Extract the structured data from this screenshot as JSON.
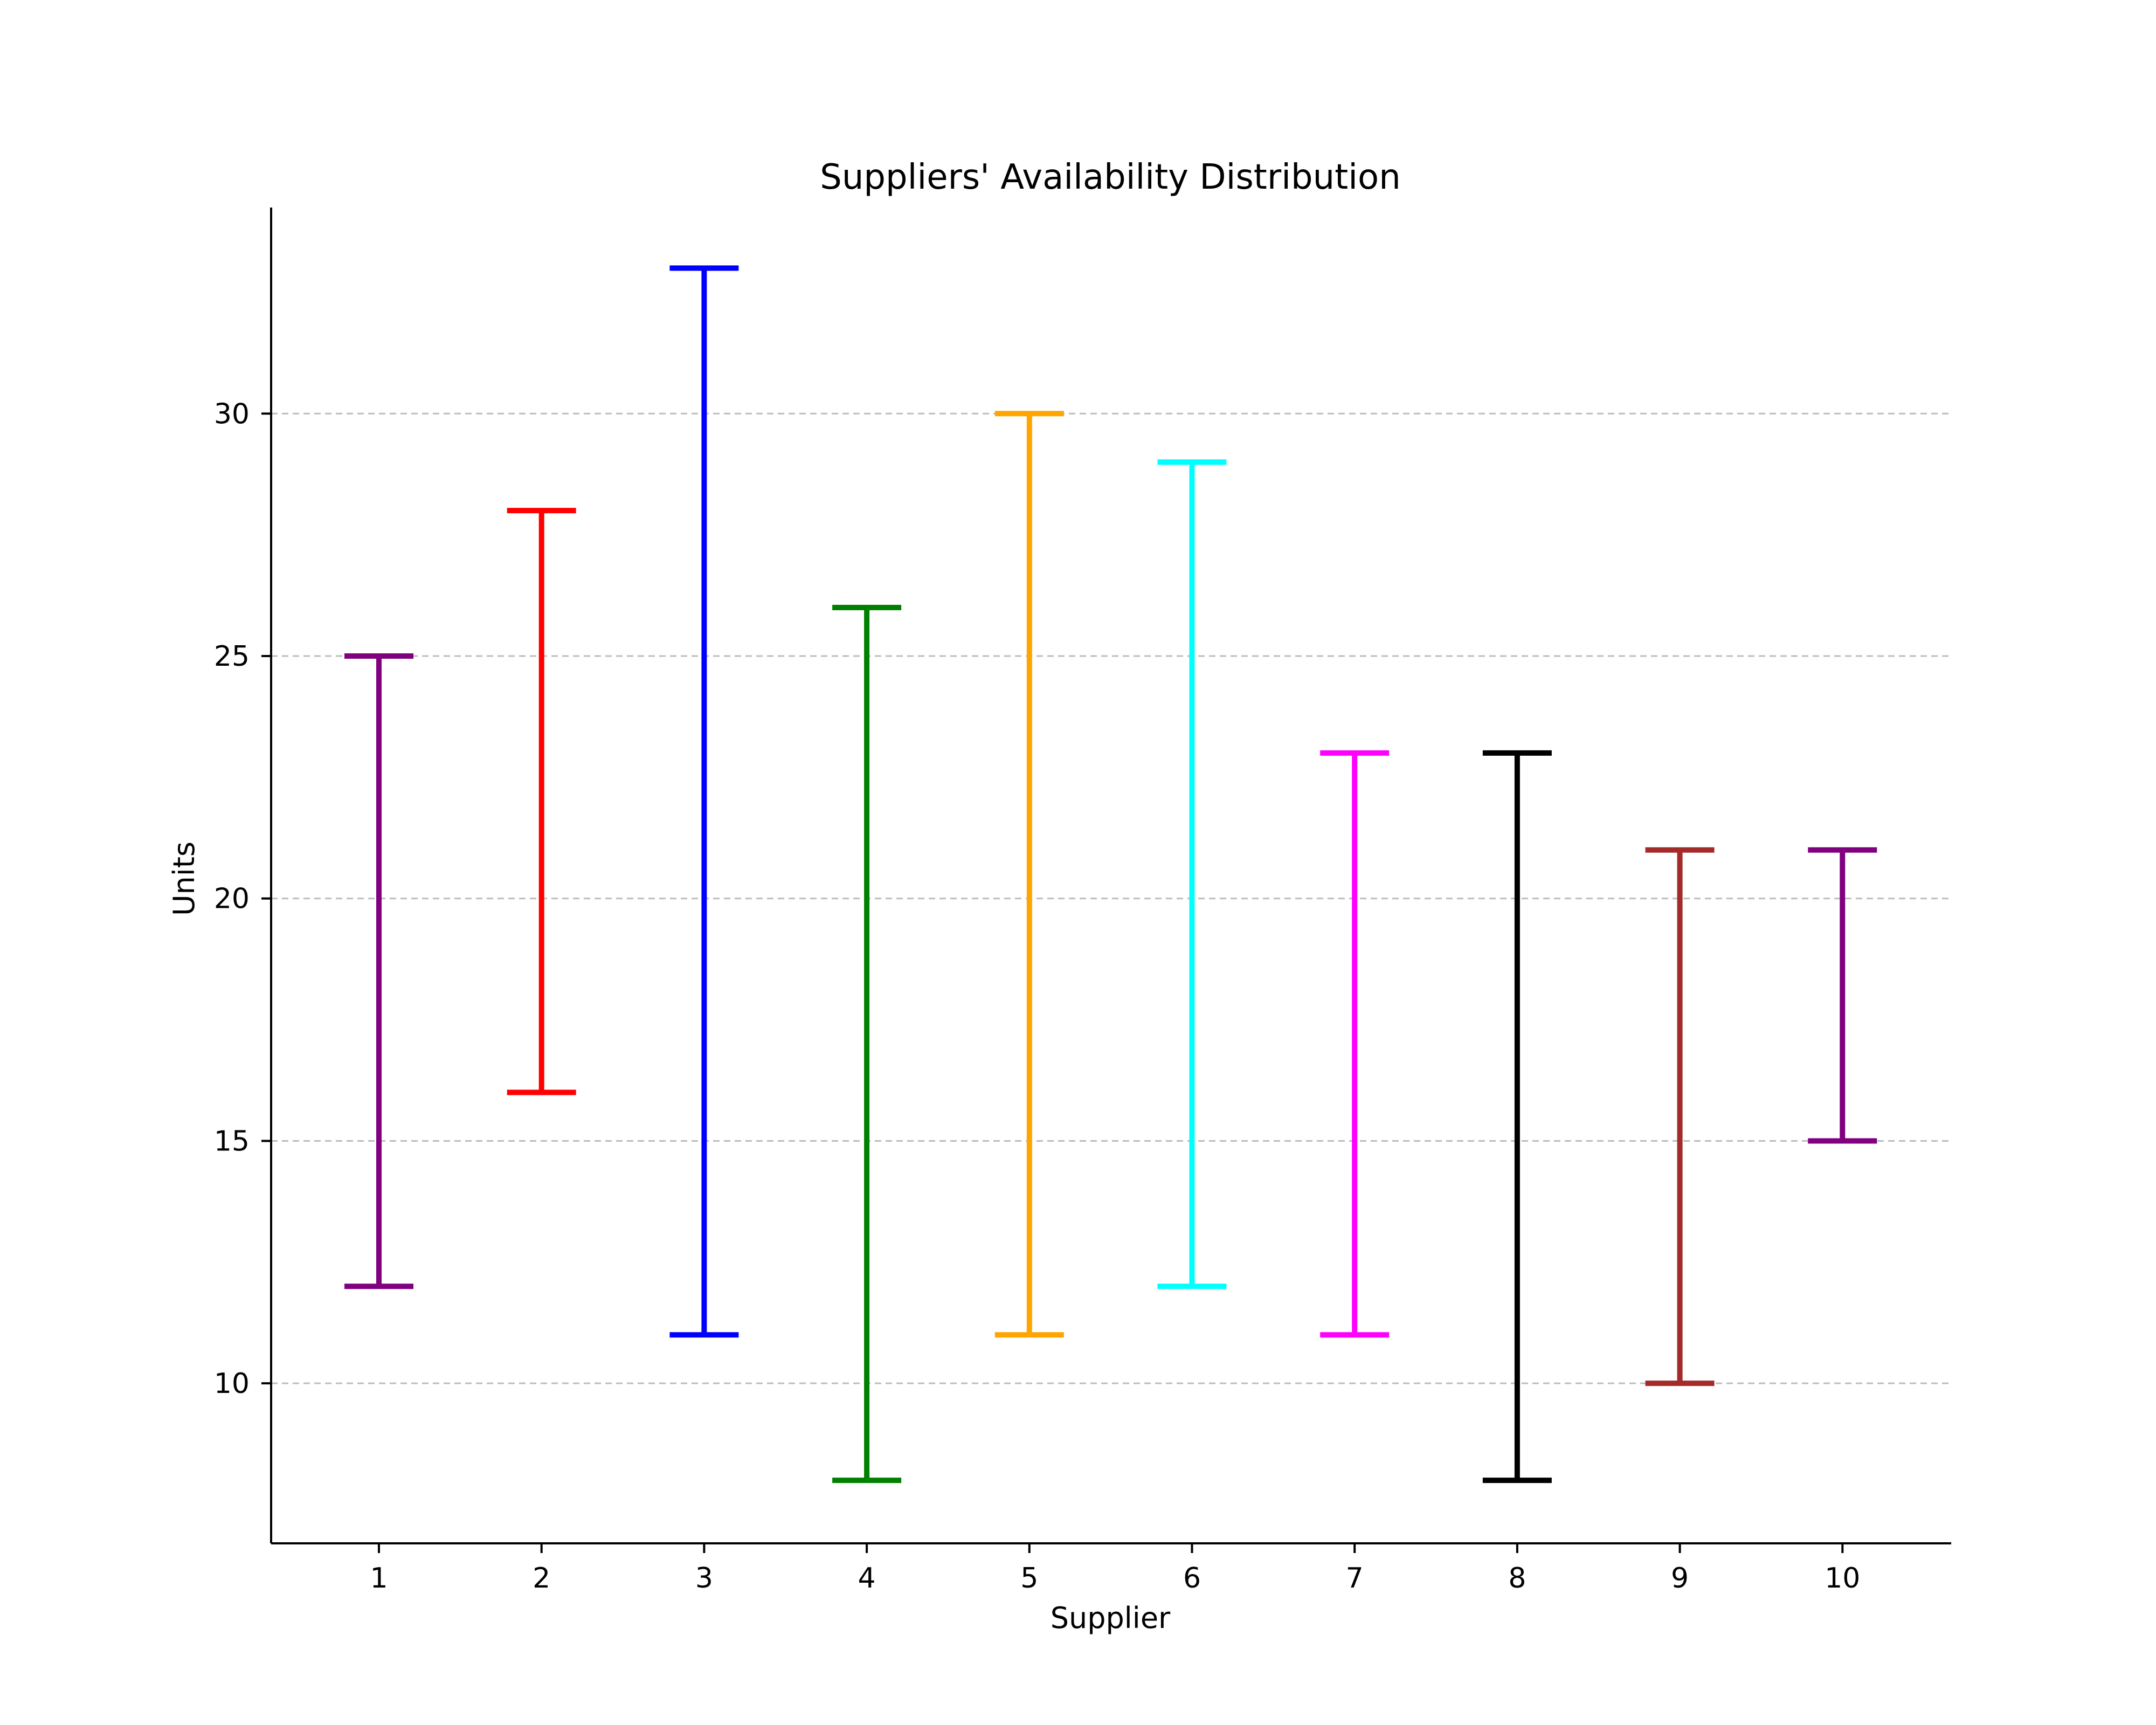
{
  "chart_data": {
    "type": "range",
    "title": "Suppliers' Availability Distribution",
    "xlabel": "Supplier",
    "ylabel": "Units",
    "categories": [
      "1",
      "2",
      "3",
      "4",
      "5",
      "6",
      "7",
      "8",
      "9",
      "10"
    ],
    "low": [
      12,
      16,
      11,
      8,
      11,
      12,
      11,
      8,
      10,
      15
    ],
    "high": [
      25,
      28,
      33,
      26,
      30,
      29,
      23,
      23,
      21,
      21
    ],
    "colors": [
      "#800080",
      "#ff0000",
      "#0000ff",
      "#008000",
      "#ffa500",
      "#00ffff",
      "#ff00ff",
      "#000000",
      "#a52a2a",
      "#800080"
    ],
    "yticks": [
      10,
      15,
      20,
      25,
      30
    ],
    "ylim": [
      6.7,
      34.25
    ],
    "grid": "y-dashed",
    "legend": "none"
  }
}
